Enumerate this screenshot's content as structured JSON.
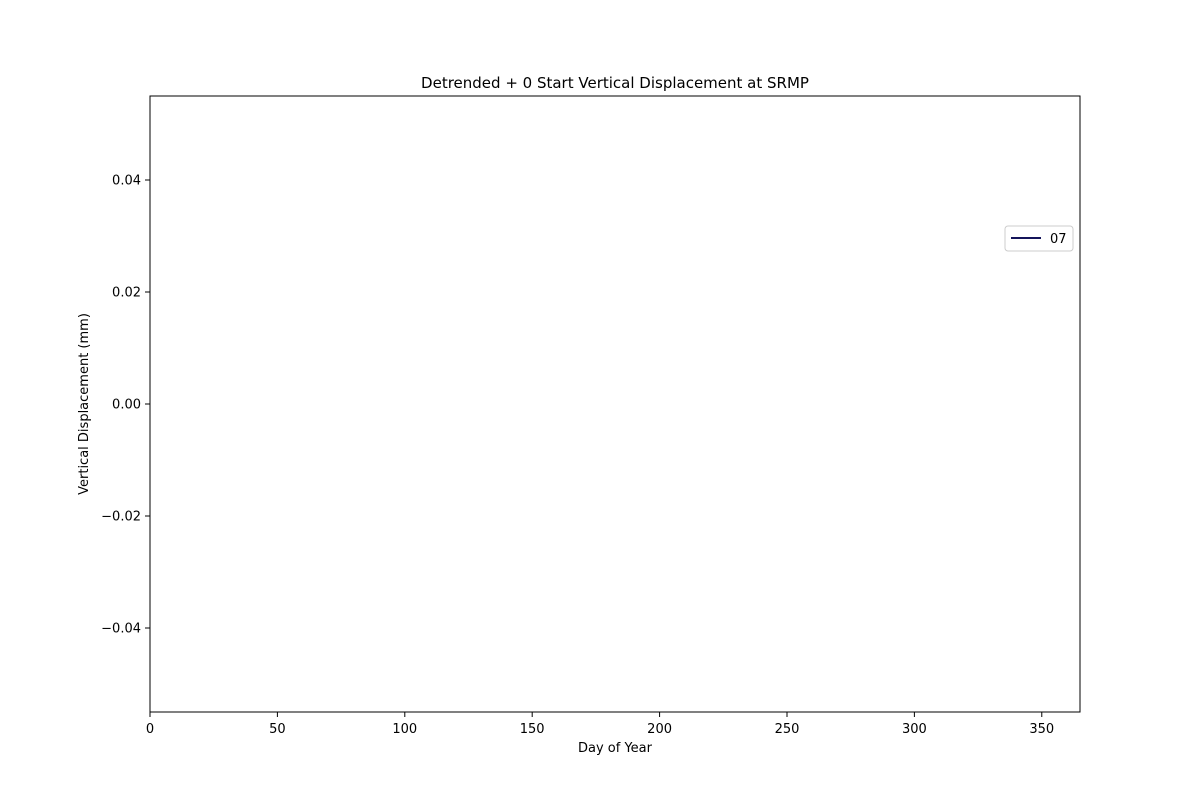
{
  "chart_data": {
    "type": "line",
    "title": "Detrended + 0 Start Vertical Displacement at SRMP",
    "xlabel": "Day of Year",
    "ylabel": "Vertical Displacement (mm)",
    "xlim": [
      0,
      365
    ],
    "ylim": [
      -0.055,
      0.055
    ],
    "xticks": [
      0,
      50,
      100,
      150,
      200,
      250,
      300,
      350
    ],
    "yticks": [
      -0.04,
      -0.02,
      0.0,
      0.02,
      0.04
    ],
    "ytick_labels": [
      "−0.04",
      "−0.02",
      "0.00",
      "0.02",
      "0.04"
    ],
    "grid": false,
    "legend_position": "right",
    "series": [
      {
        "name": "07",
        "color": "#14145a",
        "x": [],
        "y": []
      }
    ]
  }
}
